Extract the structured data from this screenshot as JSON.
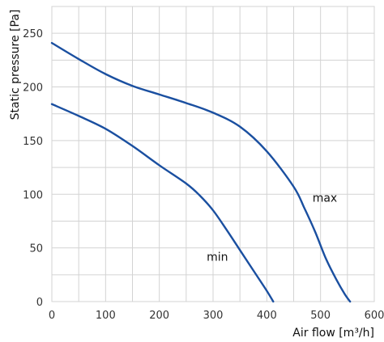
{
  "chart_data": {
    "type": "line",
    "title": "",
    "xlabel": "Air flow [m³/h]",
    "ylabel": "Static pressure [Pa]",
    "xlim": [
      0,
      600
    ],
    "ylim": [
      0,
      275
    ],
    "xticks": [
      0,
      100,
      200,
      300,
      400,
      500,
      600
    ],
    "yticks": [
      0,
      50,
      100,
      150,
      200,
      250
    ],
    "xminor": [
      50,
      150,
      250,
      350,
      450,
      550
    ],
    "yminor": [
      25,
      75,
      125,
      175,
      225
    ],
    "grid": true,
    "line_color": "#1a4fa0",
    "series": [
      {
        "name": "max",
        "label_at": [
          508,
          97
        ],
        "x": [
          0,
          50,
          100,
          150,
          200,
          250,
          300,
          350,
          400,
          450,
          470,
          490,
          510,
          530,
          545,
          555
        ],
        "y": [
          241,
          226,
          212,
          201,
          193,
          185,
          176,
          163,
          140,
          107,
          87,
          65,
          40,
          20,
          7,
          0
        ]
      },
      {
        "name": "min",
        "label_at": [
          308,
          42
        ],
        "x": [
          0,
          50,
          100,
          150,
          200,
          250,
          275,
          300,
          325,
          350,
          375,
          400,
          412
        ],
        "y": [
          184,
          173,
          161,
          145,
          127,
          110,
          99,
          85,
          67,
          48,
          29,
          10,
          0
        ]
      }
    ]
  }
}
